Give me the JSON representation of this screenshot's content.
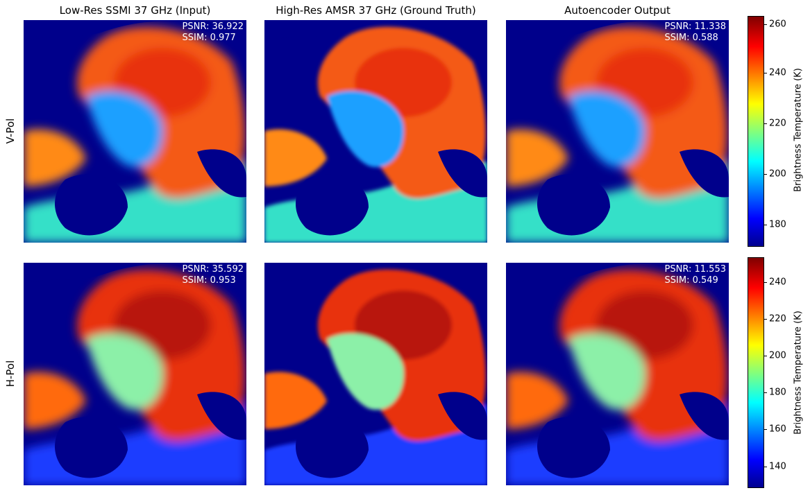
{
  "columns": [
    {
      "title": "Low-Res SSMI 37 GHz (Input)"
    },
    {
      "title": "High-Res AMSR 37 GHz (Ground Truth)"
    },
    {
      "title": "Autoencoder Output"
    }
  ],
  "rows": [
    {
      "label": "V-Pol"
    },
    {
      "label": "H-Pol"
    }
  ],
  "panels": [
    [
      {
        "metrics": "PSNR: 36.922\nSSIM: 0.977"
      },
      {
        "metrics": ""
      },
      {
        "metrics": "PSNR: 11.338\nSSIM: 0.588"
      }
    ],
    [
      {
        "metrics": "PSNR: 35.592\nSSIM: 0.953"
      },
      {
        "metrics": ""
      },
      {
        "metrics": "PSNR: 11.553\nSSIM: 0.549"
      }
    ]
  ],
  "colorbars": [
    {
      "label": "Brightness Temperature (K)",
      "min": 172,
      "max": 263,
      "ticks": [
        "180",
        "200",
        "220",
        "240",
        "260"
      ]
    },
    {
      "label": "Brightness Temperature (K)",
      "min": 128,
      "max": 253,
      "ticks": [
        "140",
        "160",
        "180",
        "200",
        "220",
        "240"
      ]
    }
  ],
  "colors": {
    "ocean": "#00008b",
    "colormap": "jet"
  }
}
